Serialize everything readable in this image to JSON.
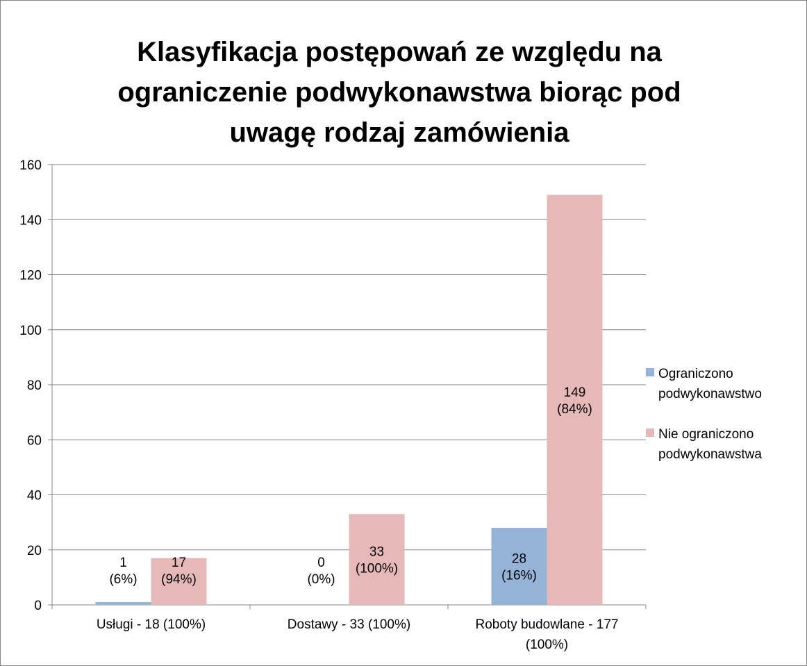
{
  "chart_data": {
    "type": "bar",
    "title": "Klasyfikacja postępowań ze względu na ograniczenie podwykonawstwa biorąc pod uwagę rodzaj zamówienia",
    "categories": [
      "Usługi - 18 (100%)",
      "Dostawy - 33 (100%)",
      "Roboty budowlane - 177 (100%)"
    ],
    "series": [
      {
        "name": "Ograniczono podwykonawstwo",
        "color": "#95b3d7",
        "values": [
          1,
          0,
          28
        ],
        "value_labels": [
          "1 (6%)",
          "0 (0%)",
          "28 (16%)"
        ]
      },
      {
        "name": "Nie ograniczono podwykonawstwa",
        "color": "#e6b9b8",
        "values": [
          17,
          33,
          149
        ],
        "value_labels": [
          "17 (94%)",
          "33 (100%)",
          "149 (84%)"
        ]
      }
    ],
    "ylim": [
      0,
      160
    ],
    "yticks": [
      0,
      20,
      40,
      60,
      80,
      100,
      120,
      140,
      160
    ],
    "grid": true,
    "legend": "right"
  }
}
